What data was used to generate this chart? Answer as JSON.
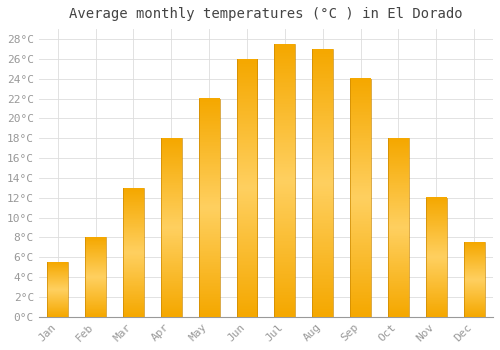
{
  "title": "Average monthly temperatures (°C ) in El Dorado",
  "months": [
    "Jan",
    "Feb",
    "Mar",
    "Apr",
    "May",
    "Jun",
    "Jul",
    "Aug",
    "Sep",
    "Oct",
    "Nov",
    "Dec"
  ],
  "values": [
    5.5,
    8.0,
    13.0,
    18.0,
    22.0,
    26.0,
    27.5,
    27.0,
    24.0,
    18.0,
    12.0,
    7.5
  ],
  "bar_color": "#FFA500",
  "bar_edge_color": "#CC8800",
  "ylim": [
    0,
    29
  ],
  "ytick_step": 2,
  "background_color": "#ffffff",
  "grid_color": "#dddddd",
  "title_fontsize": 10,
  "tick_fontsize": 8,
  "tick_color": "#999999",
  "font_family": "monospace"
}
